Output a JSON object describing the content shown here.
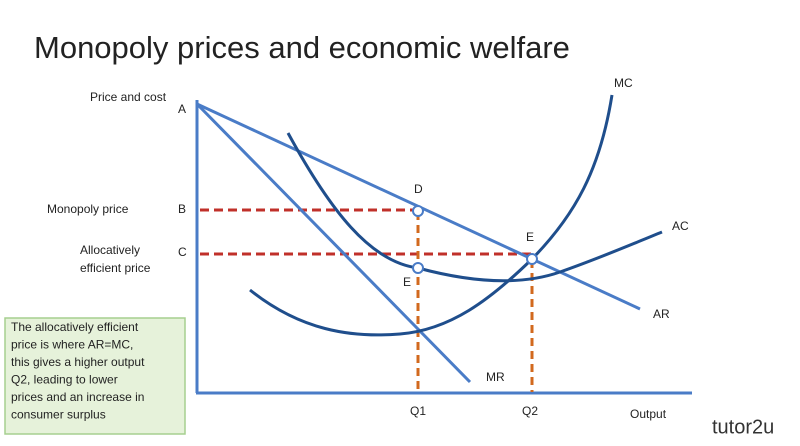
{
  "title": "Monopoly prices and economic welfare",
  "axes": {
    "y_label": "Price and cost",
    "x_label": "Output"
  },
  "points": {
    "a": "A",
    "b": "B",
    "c": "C",
    "d": "D",
    "e_upper": "E",
    "e_lower": "E",
    "q1": "Q1",
    "q2": "Q2"
  },
  "curves": {
    "mc": "MC",
    "ac": "AC",
    "ar": "AR",
    "mr": "MR"
  },
  "price_labels": {
    "monopoly": "Monopoly price",
    "efficient": [
      "Allocatively",
      "efficient price"
    ]
  },
  "note": [
    "The allocatively efficient",
    "price is where AR=MC,",
    "this gives a higher output",
    "Q2, leading to lower",
    "prices and an increase in",
    "consumer surplus"
  ],
  "logo": "tutor2u"
}
